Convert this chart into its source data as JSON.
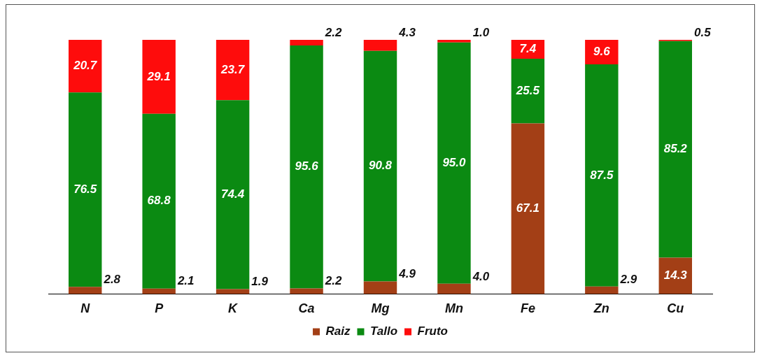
{
  "chart_data": {
    "type": "bar",
    "stacked": true,
    "categories": [
      "N",
      "P",
      "K",
      "Ca",
      "Mg",
      "Mn",
      "Fe",
      "Zn",
      "Cu"
    ],
    "series": [
      {
        "name": "Raiz",
        "color": "#a33f16",
        "values": [
          2.8,
          2.1,
          1.9,
          2.2,
          4.9,
          4.0,
          67.1,
          2.9,
          14.3
        ],
        "value_labels": [
          "2.8",
          "2.1",
          "1.9",
          "2.2",
          "4.9",
          "4.0",
          "67.1",
          "2.9",
          "14.3"
        ]
      },
      {
        "name": "Tallo",
        "color": "#0b8a12",
        "values": [
          76.5,
          68.8,
          74.4,
          95.6,
          90.8,
          95.0,
          25.5,
          87.5,
          85.2
        ],
        "value_labels": [
          "76.5",
          "68.8",
          "74.4",
          "95.6",
          "90.8",
          "95.0",
          "25.5",
          "87.5",
          "85.2"
        ]
      },
      {
        "name": "Fruto",
        "color": "#fe0c0c",
        "values": [
          20.7,
          29.1,
          23.7,
          2.2,
          4.3,
          1.0,
          7.4,
          9.6,
          0.5
        ],
        "value_labels": [
          "20.7",
          "29.1",
          "23.7",
          "2.2",
          "4.3",
          "1.0",
          "7.4",
          "9.6",
          "0.5"
        ]
      }
    ],
    "legend": "bottom",
    "grid": false
  }
}
